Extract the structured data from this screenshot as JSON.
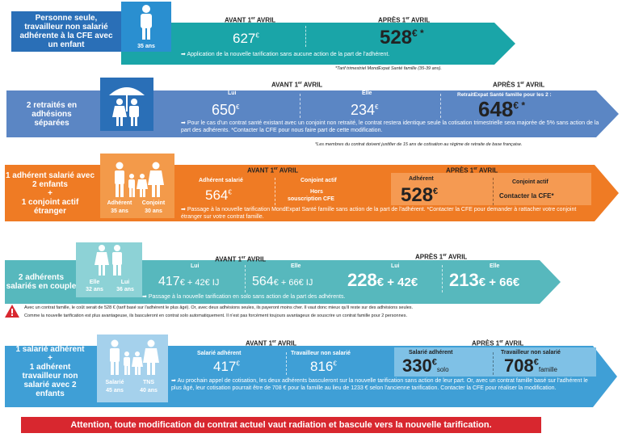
{
  "colors": {
    "blue_dark": "#2a6fb7",
    "blue_mid": "#5b86c4",
    "teal": "#1aa5a8",
    "orange": "#ef7b24",
    "teal2": "#57b8bd",
    "light_blue": "#3f9fd6",
    "red": "#d8272f"
  },
  "s1": {
    "label": "Personne seule, travailleur non salarié adhérente à la CFE avec un enfant",
    "age": "35 ans",
    "before_hdr": "AVANT 1",
    "before_sup": "er",
    "before_hdr2": " AVRIL",
    "after_hdr": "APRÈS 1",
    "after_sup": "er",
    "after_hdr2": " AVRIL",
    "before_price": "627",
    "before_cur": "€",
    "after_price": "528",
    "after_cur": "€ *",
    "note": "Application de la nouvelle tarification sans aucune action de la part de l'adhérent.",
    "foot": "*Tarif trimestriel MondExpat Santé famille (35-39 ans)."
  },
  "s2": {
    "label": "2 retraités en adhésions séparées",
    "before_hdr": "AVANT 1",
    "before_sup": "er",
    "before_hdr2": " AVRIL",
    "after_hdr": "APRÈS 1",
    "after_sup": "er",
    "after_hdr2": " AVRIL",
    "cap_lui": "Lui",
    "cap_elle": "Elle",
    "cap_after": "RetraitExpat Santé famille pour les 2 :",
    "price_lui": "650",
    "price_elle": "234",
    "cur": "€",
    "after_price": "648",
    "after_cur": "€ *",
    "note": "Pour le cas d'un contrat santé existant avec un conjoint non retraité, le contrat restera identique seule la cotisation trimestrielle sera majorée de 5% sans action de la part des adhérents. *Contacter la CFE pour nous faire part de cette modification.",
    "foot": "*Les membres du contrat doivent justifier de 15 ans de cotisation au régime de retraite de base française."
  },
  "s3": {
    "label1": "1 adhérent salarié avec 2 enfants",
    "plus": "+",
    "label2": "1 conjoint actif étranger",
    "fig_adh": "Adhérent",
    "fig_conj": "Conjoint",
    "age_adh": "35 ans",
    "age_conj": "30 ans",
    "before_hdr": "AVANT 1",
    "before_sup": "er",
    "before_hdr2": " AVRIL",
    "after_hdr": "APRÈS 1",
    "after_sup": "er",
    "after_hdr2": " AVRIL",
    "cap_adh": "Adhérent salarié",
    "cap_conj": "Conjoint actif",
    "cap_adh2": "Adhérent",
    "cap_conj2": "Conjoint actif",
    "price_adh": "564",
    "cur": "€",
    "hors": "Hors",
    "hors2": "souscription CFE",
    "after_price": "528",
    "after_cur": "€",
    "contact": "Contacter la CFE*",
    "note": "Passage à la nouvelle tarification MondExpat Santé famille sans action de la part de l'adhérent. *Contacter la CFE pour demander à rattacher votre conjoint étranger sur votre contrat famille."
  },
  "s4": {
    "label": "2 adhérents salariés en couple",
    "fig_elle": "Elle",
    "fig_lui": "Lui",
    "age_elle": "32 ans",
    "age_lui": "36 ans",
    "before_hdr": "AVANT 1",
    "before_sup": "er",
    "before_hdr2": " AVRIL",
    "after_hdr": "APRÈS 1",
    "after_sup": "er",
    "after_hdr2": " AVRIL",
    "cap_lui": "Lui",
    "cap_elle": "Elle",
    "cap_lui2": "Lui",
    "cap_elle2": "Elle",
    "b_lui": "417",
    "b_lui_add": "€ + 42€ IJ",
    "b_elle": "564",
    "b_elle_add": "€ + 66€ IJ",
    "a_lui": "228",
    "a_lui_add": "€ + 42€",
    "a_elle": "213",
    "a_elle_add": "€ + 66€",
    "note": "Passage à la nouvelle tarification en solo sans action de la part des adhérents.",
    "warn1": "Avec un contrat famille, le coût serait de 528 € (tarif basé sur l'adhérent le plus âgé). Or, avec deux adhésions seules, ils payeront moins cher. Il vaut donc mieux qu'il reste sur des adhésions seules.",
    "warn2": "Comme la nouvelle tarification est plus avantageuse, ils basculeront en contrat solo automatiquement. Il n'est pas forcément toujours avantageux de souscrire un contrat famille pour 2 personnes."
  },
  "s5": {
    "label1": "1 salarié adhérent",
    "plus": "+",
    "label2": "1 adhérent travailleur non salarié avec 2 enfants",
    "fig_sal": "Salarié",
    "fig_tns": "TNS",
    "age_sal": "45 ans",
    "age_tns": "40 ans",
    "before_hdr": "AVANT 1",
    "before_sup": "er",
    "before_hdr2": " AVRIL",
    "after_hdr": "APRÈS 1",
    "after_sup": "er",
    "after_hdr2": " AVRIL",
    "cap_sal": "Salarié adhérent",
    "cap_tns": "Travailleur non salarié",
    "cap_sal2": "Salarié adhérent",
    "cap_tns2": "Travailleur non salarié",
    "b_sal": "417",
    "b_tns": "816",
    "cur": "€",
    "a_sal": "330",
    "a_sal_cur": "€",
    "solo": "solo",
    "a_tns": "708",
    "a_tns_cur": "€",
    "famille": "famille",
    "note": "Au prochain appel de cotisation, les deux adhérents basculeront sur la nouvelle tarification sans action de leur part. Or, avec un contrat famille basé sur l'adhérent le plus âgé, leur cotisation pourrait être de 708 € pour la famille au lieu de 1233 € selon l'ancienne tarification. Contacter la CFE pour réaliser la modification."
  },
  "attention": "Attention, toute modification du contrat actuel vaut radiation et bascule vers la nouvelle tarification."
}
